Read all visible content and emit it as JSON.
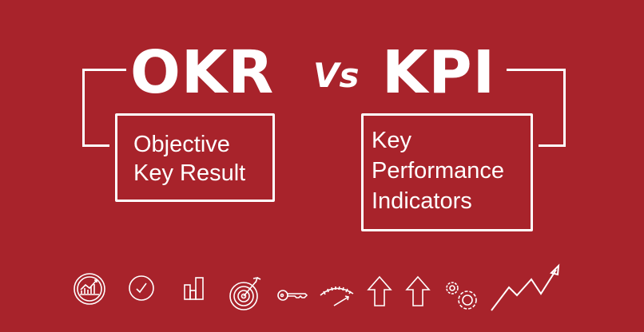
{
  "colors": {
    "background": "#a8232b",
    "foreground": "#ffffff"
  },
  "title": {
    "left": "OKR",
    "vs": "Vs",
    "right": "KPI"
  },
  "okr_box": {
    "lines": [
      "Objective",
      "Key Result"
    ]
  },
  "kpi_box": {
    "lines": [
      "Key",
      "Performance",
      "Indicators"
    ]
  },
  "icons": [
    "growth-chart-badge-icon",
    "checkmark-circle-icon",
    "bar-chart-icon",
    "target-arrow-icon",
    "key-icon",
    "gauge-icon",
    "arrow-up-icon",
    "arrow-up-icon",
    "gears-icon",
    "trend-up-arrow-icon"
  ]
}
